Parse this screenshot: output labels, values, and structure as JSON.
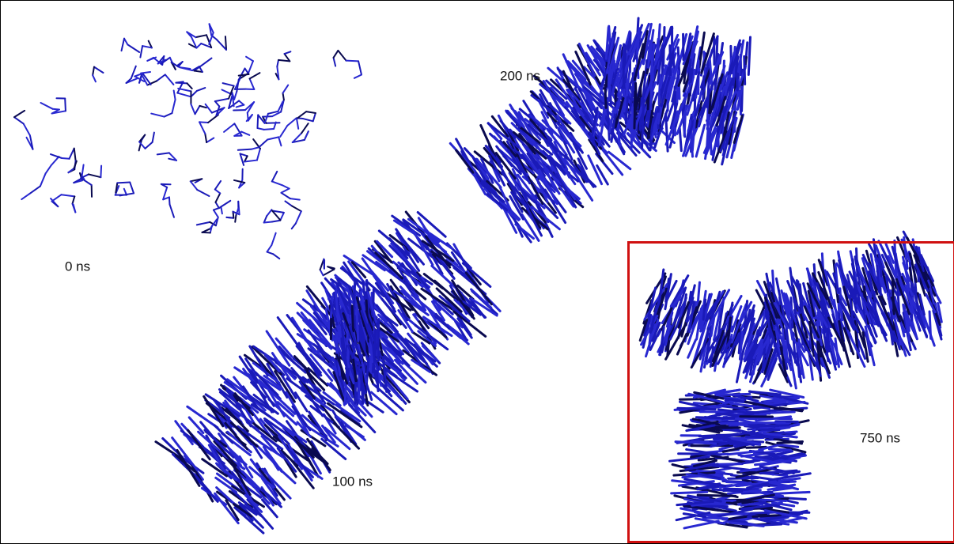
{
  "snapshots": [
    {
      "label": "0 ns"
    },
    {
      "label": "100 ns"
    },
    {
      "label": "200 ns"
    },
    {
      "label": "750 ns"
    }
  ]
}
